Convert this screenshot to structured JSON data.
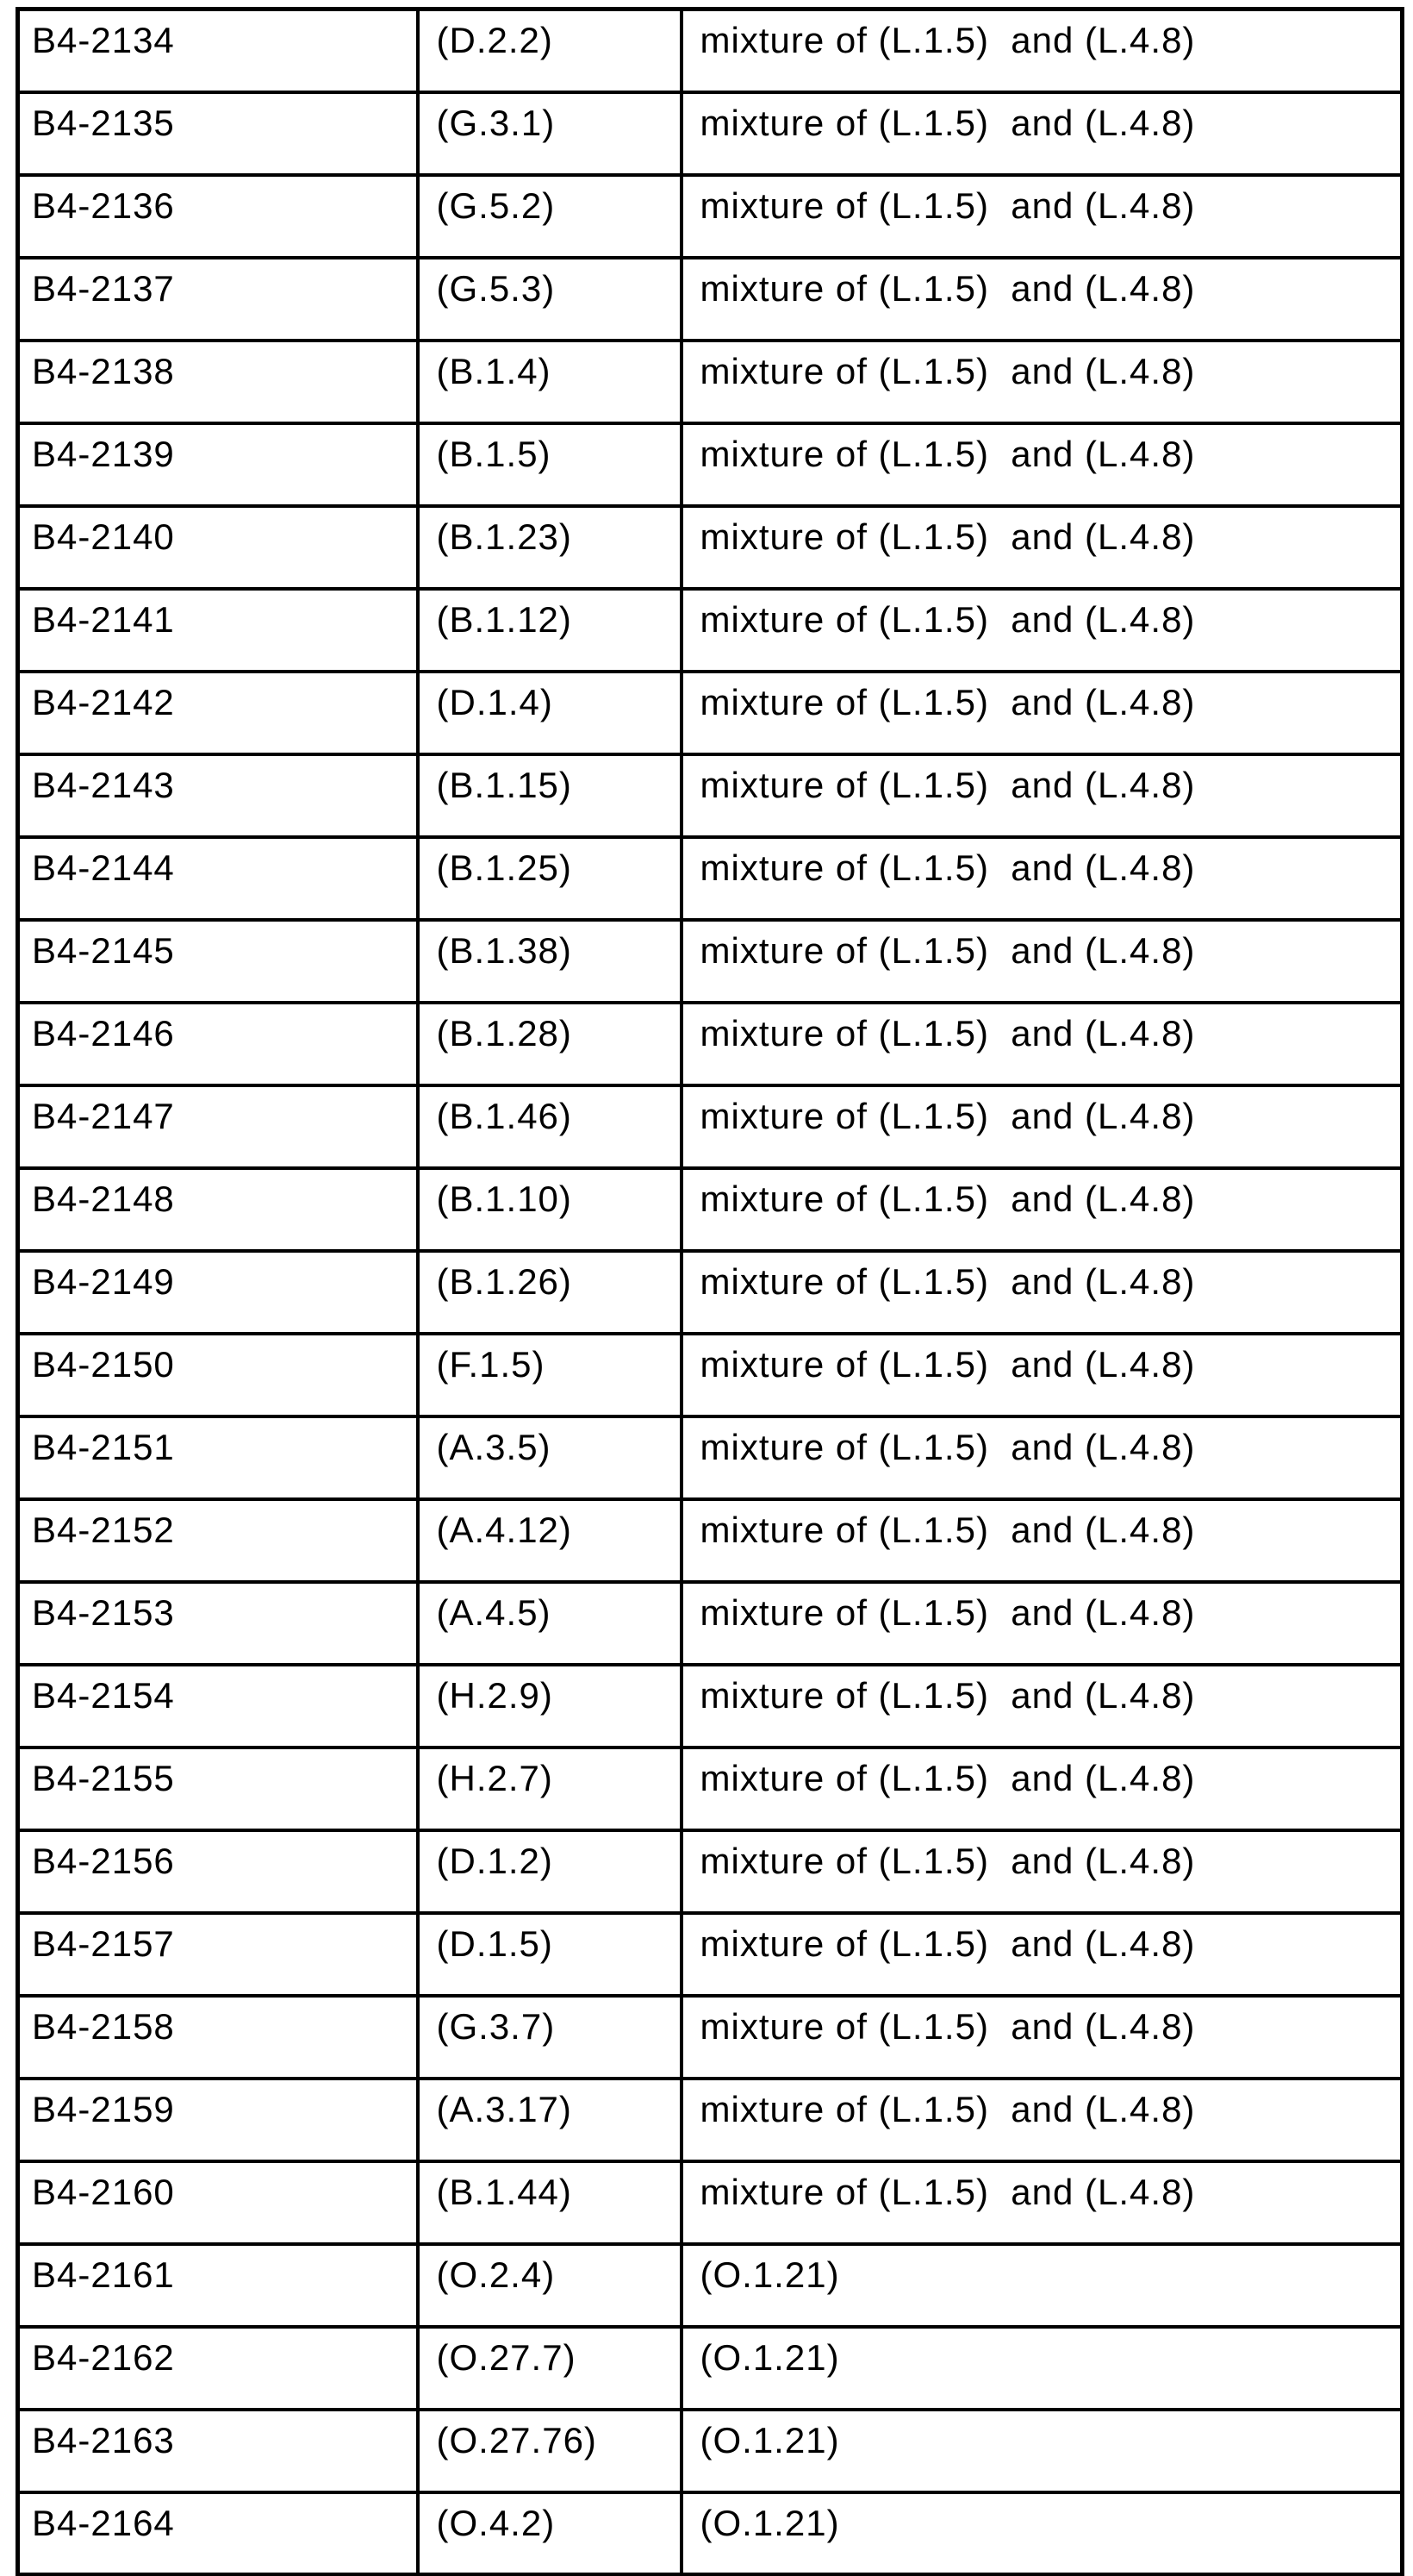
{
  "colors": {
    "background": "#ffffff",
    "text": "#000000",
    "table_border": "#000000"
  },
  "table": {
    "rows": [
      [
        "B4-2134",
        "(D.2.2)",
        "mixture of (L.1.5)  and (L.4.8)"
      ],
      [
        "B4-2135",
        "(G.3.1)",
        "mixture of (L.1.5)  and (L.4.8)"
      ],
      [
        "B4-2136",
        "(G.5.2)",
        "mixture of (L.1.5)  and (L.4.8)"
      ],
      [
        "B4-2137",
        "(G.5.3)",
        "mixture of (L.1.5)  and (L.4.8)"
      ],
      [
        "B4-2138",
        "(B.1.4)",
        "mixture of (L.1.5)  and (L.4.8)"
      ],
      [
        "B4-2139",
        "(B.1.5)",
        "mixture of (L.1.5)  and (L.4.8)"
      ],
      [
        "B4-2140",
        "(B.1.23)",
        "mixture of (L.1.5)  and (L.4.8)"
      ],
      [
        "B4-2141",
        "(B.1.12)",
        "mixture of (L.1.5)  and (L.4.8)"
      ],
      [
        "B4-2142",
        "(D.1.4)",
        "mixture of (L.1.5)  and (L.4.8)"
      ],
      [
        "B4-2143",
        "(B.1.15)",
        "mixture of (L.1.5)  and (L.4.8)"
      ],
      [
        "B4-2144",
        "(B.1.25)",
        "mixture of (L.1.5)  and (L.4.8)"
      ],
      [
        "B4-2145",
        "(B.1.38)",
        "mixture of (L.1.5)  and (L.4.8)"
      ],
      [
        "B4-2146",
        "(B.1.28)",
        "mixture of (L.1.5)  and (L.4.8)"
      ],
      [
        "B4-2147",
        "(B.1.46)",
        "mixture of (L.1.5)  and (L.4.8)"
      ],
      [
        "B4-2148",
        "(B.1.10)",
        "mixture of (L.1.5)  and (L.4.8)"
      ],
      [
        "B4-2149",
        "(B.1.26)",
        "mixture of (L.1.5)  and (L.4.8)"
      ],
      [
        "B4-2150",
        "(F.1.5)",
        "mixture of (L.1.5)  and (L.4.8)"
      ],
      [
        "B4-2151",
        "(A.3.5)",
        "mixture of (L.1.5)  and (L.4.8)"
      ],
      [
        "B4-2152",
        "(A.4.12)",
        "mixture of (L.1.5)  and (L.4.8)"
      ],
      [
        "B4-2153",
        "(A.4.5)",
        "mixture of (L.1.5)  and (L.4.8)"
      ],
      [
        "B4-2154",
        "(H.2.9)",
        "mixture of (L.1.5)  and (L.4.8)"
      ],
      [
        "B4-2155",
        "(H.2.7)",
        "mixture of (L.1.5)  and (L.4.8)"
      ],
      [
        "B4-2156",
        "(D.1.2)",
        "mixture of (L.1.5)  and (L.4.8)"
      ],
      [
        "B4-2157",
        "(D.1.5)",
        "mixture of (L.1.5)  and (L.4.8)"
      ],
      [
        "B4-2158",
        "(G.3.7)",
        "mixture of (L.1.5)  and (L.4.8)"
      ],
      [
        "B4-2159",
        "(A.3.17)",
        "mixture of (L.1.5)  and (L.4.8)"
      ],
      [
        "B4-2160",
        "(B.1.44)",
        "mixture of (L.1.5)  and (L.4.8)"
      ],
      [
        "B4-2161",
        "(O.2.4)",
        "(O.1.21)"
      ],
      [
        "B4-2162",
        "(O.27.7)",
        "(O.1.21)"
      ],
      [
        "B4-2163",
        "(O.27.76)",
        "(O.1.21)"
      ],
      [
        "B4-2164",
        "(O.4.2)",
        "(O.1.21)"
      ]
    ]
  }
}
